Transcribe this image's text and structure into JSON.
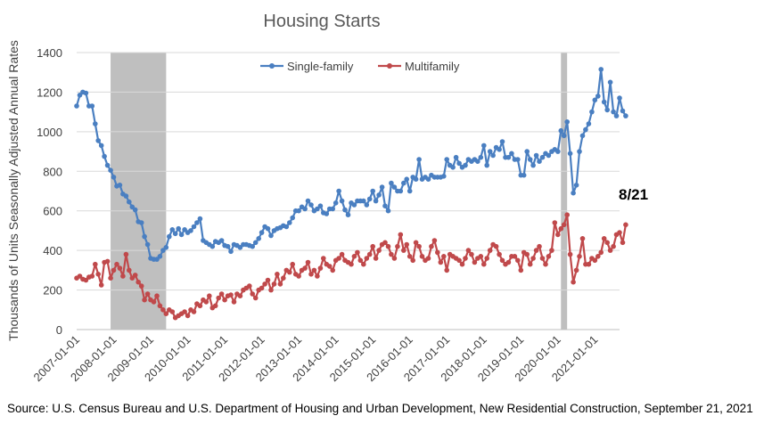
{
  "chart_data": {
    "type": "line",
    "title": "Housing Starts",
    "ylabel": "Thousands of Units Seasonally Adjusted Annual Rates",
    "ylim": [
      0,
      1400
    ],
    "yticks": [
      0,
      200,
      400,
      600,
      800,
      1000,
      1200,
      1400
    ],
    "xlim": [
      "2007-01-01",
      "2021-09-01"
    ],
    "xticks": [
      "2007-01-01",
      "2008-01-01",
      "2009-01-01",
      "2010-01-01",
      "2011-01-01",
      "2012-01-01",
      "2013-01-01",
      "2014-01-01",
      "2015-01-01",
      "2016-01-01",
      "2017-01-01",
      "2018-01-01",
      "2019-01-01",
      "2020-01-01",
      "2021-01-01"
    ],
    "legend_position": "top",
    "annotation": "8/21",
    "recessions": [
      [
        "2007-12-01",
        "2009-06-01"
      ],
      [
        "2020-02-01",
        "2020-04-01"
      ]
    ],
    "recession_color": "#bfbfbf",
    "start_month": "2007-01",
    "series": [
      {
        "name": "Single-family",
        "color": "#4a7fc1",
        "values": [
          1130,
          1185,
          1200,
          1195,
          1130,
          1130,
          1040,
          955,
          930,
          875,
          830,
          805,
          770,
          725,
          730,
          685,
          675,
          645,
          620,
          605,
          545,
          540,
          470,
          430,
          360,
          355,
          355,
          370,
          400,
          415,
          470,
          505,
          485,
          510,
          480,
          505,
          490,
          500,
          520,
          540,
          560,
          450,
          440,
          430,
          420,
          445,
          440,
          450,
          425,
          420,
          395,
          430,
          425,
          415,
          430,
          430,
          425,
          420,
          440,
          460,
          490,
          520,
          510,
          475,
          500,
          510,
          515,
          525,
          520,
          540,
          565,
          600,
          600,
          620,
          610,
          650,
          630,
          600,
          610,
          625,
          590,
          585,
          610,
          610,
          640,
          700,
          650,
          605,
          580,
          640,
          630,
          650,
          650,
          650,
          630,
          660,
          700,
          650,
          680,
          720,
          625,
          600,
          740,
          720,
          700,
          700,
          740,
          760,
          700,
          770,
          760,
          860,
          760,
          770,
          760,
          780,
          770,
          770,
          770,
          775,
          860,
          830,
          820,
          870,
          840,
          820,
          830,
          860,
          850,
          860,
          850,
          870,
          930,
          830,
          900,
          880,
          920,
          910,
          950,
          870,
          870,
          890,
          860,
          860,
          780,
          780,
          900,
          860,
          830,
          880,
          850,
          870,
          890,
          880,
          900,
          910,
          900,
          1005,
          980,
          1050,
          890,
          690,
          730,
          900,
          980,
          1010,
          1040,
          1100,
          1160,
          1180,
          1315,
          1150,
          1110,
          1250,
          1100,
          1080,
          1170,
          1105,
          1080
        ]
      },
      {
        "name": "Multifamily",
        "color": "#c0494b",
        "values": [
          260,
          270,
          255,
          250,
          265,
          270,
          330,
          280,
          225,
          340,
          345,
          260,
          300,
          330,
          310,
          270,
          380,
          300,
          260,
          275,
          240,
          220,
          150,
          180,
          150,
          140,
          170,
          120,
          100,
          80,
          100,
          90,
          60,
          70,
          80,
          90,
          70,
          100,
          90,
          130,
          120,
          150,
          140,
          170,
          110,
          120,
          160,
          180,
          150,
          170,
          175,
          140,
          180,
          170,
          200,
          210,
          220,
          180,
          160,
          200,
          210,
          230,
          250,
          200,
          230,
          280,
          230,
          260,
          300,
          290,
          330,
          280,
          270,
          300,
          310,
          340,
          280,
          300,
          270,
          310,
          360,
          330,
          320,
          300,
          350,
          360,
          380,
          350,
          340,
          330,
          370,
          390,
          350,
          330,
          360,
          380,
          420,
          360,
          400,
          430,
          440,
          420,
          380,
          360,
          420,
          480,
          400,
          430,
          370,
          350,
          440,
          420,
          370,
          350,
          360,
          420,
          450,
          390,
          340,
          370,
          300,
          380,
          370,
          360,
          350,
          330,
          360,
          400,
          380,
          340,
          360,
          370,
          330,
          360,
          400,
          430,
          420,
          380,
          350,
          330,
          340,
          370,
          370,
          350,
          300,
          390,
          380,
          330,
          360,
          400,
          420,
          360,
          330,
          370,
          400,
          540,
          480,
          510,
          530,
          580,
          380,
          240,
          300,
          370,
          460,
          330,
          330,
          360,
          350,
          370,
          390,
          460,
          440,
          400,
          420,
          480,
          490,
          440,
          530
        ]
      }
    ]
  },
  "source": "Source: U.S. Census Bureau and U.S. Department of Housing and Urban Development, New Residential Construction, September 21, 2021"
}
